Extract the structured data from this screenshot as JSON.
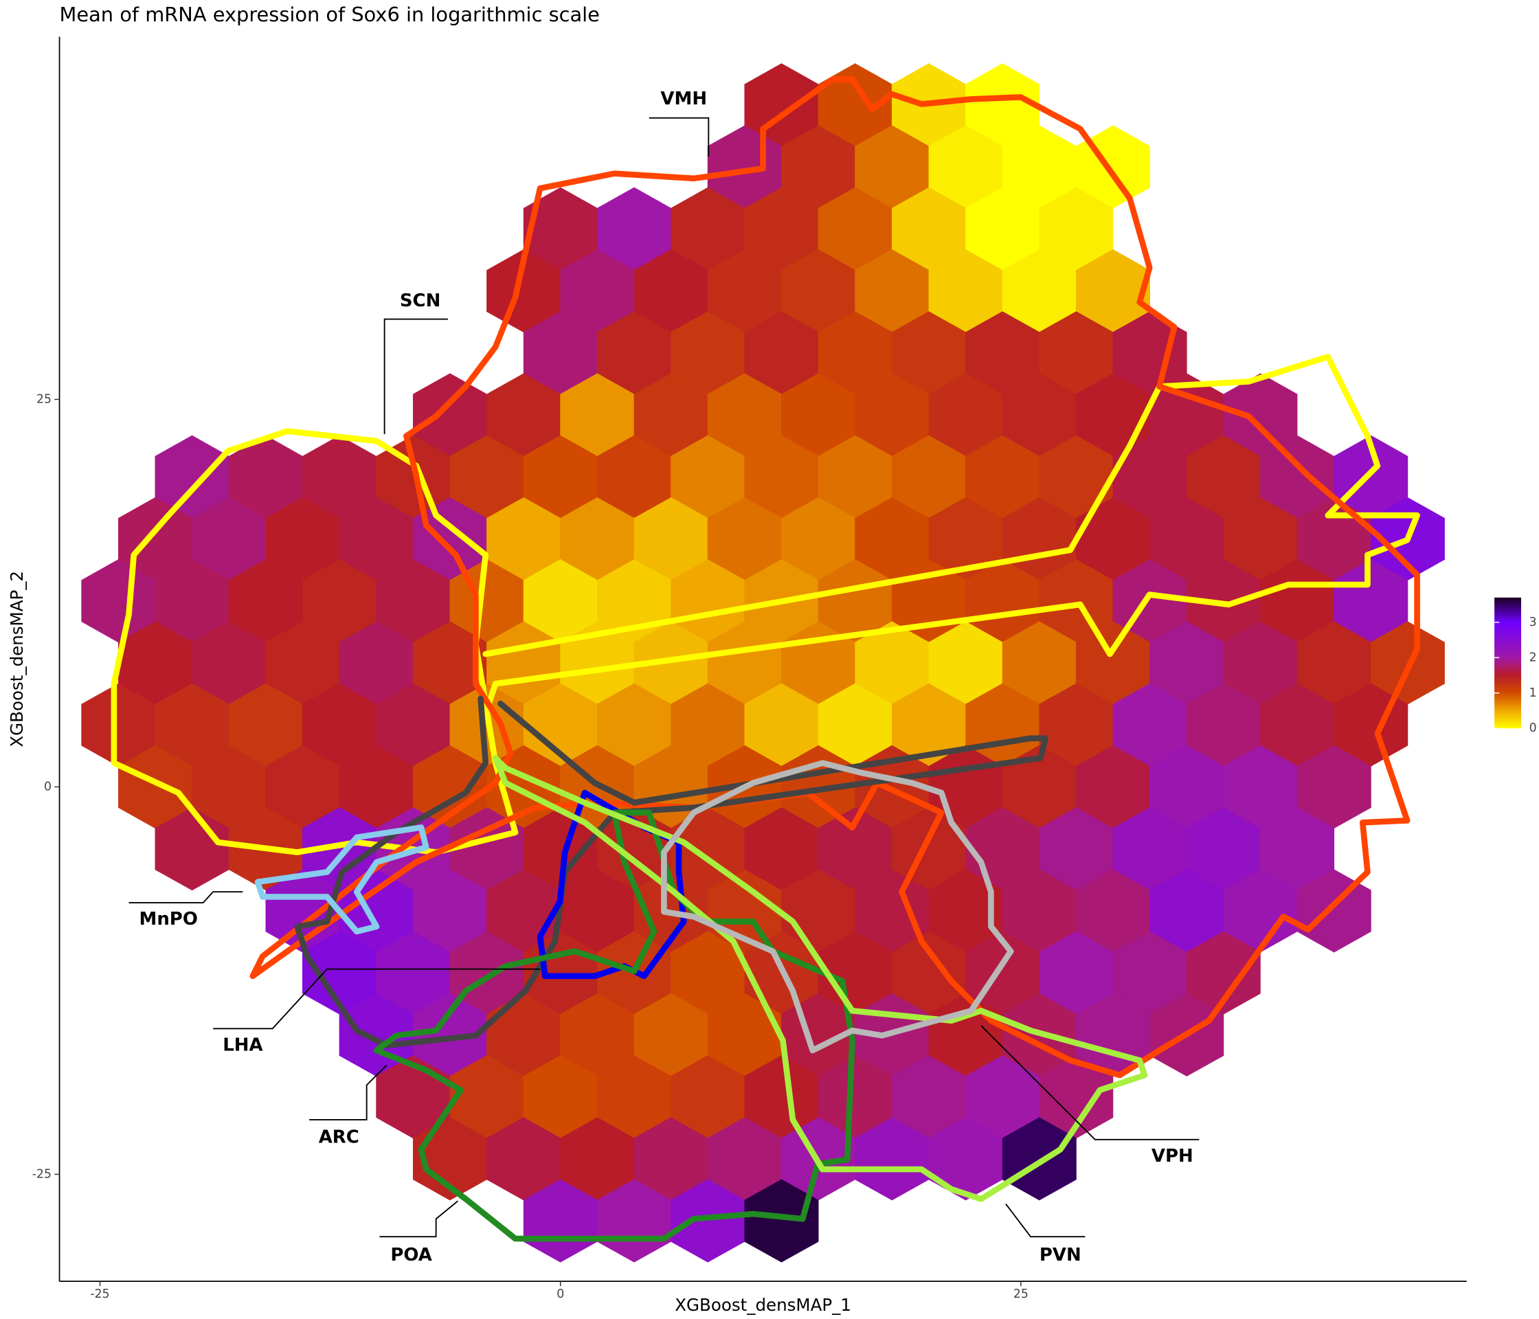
{
  "chart_data": {
    "type": "hexbin",
    "title": "Mean of mRNA expression of Sox6 in logarithmic scale",
    "x_label": "XGBoost_densMAP_1",
    "y_label": "XGBoost_densMAP_2",
    "xlim": [
      -27.2,
      49.2
    ],
    "ylim": [
      -31.9,
      48.4
    ],
    "xticks": [
      -25,
      0,
      25
    ],
    "yticks": [
      -25,
      0,
      25
    ],
    "rows": [
      {
        "y": 44,
        "x": [
          12,
          16,
          20,
          24
        ],
        "values": [
          1.5,
          1.0,
          0.2,
          0.0
        ]
      },
      {
        "y": 40,
        "x": [
          10,
          14,
          18,
          22,
          26,
          30
        ],
        "values": [
          1.8,
          1.3,
          0.8,
          0.1,
          0.0,
          0.0
        ]
      },
      {
        "y": 36,
        "x": [
          0,
          4,
          8,
          12,
          16,
          20,
          24,
          28
        ],
        "values": [
          1.6,
          2.0,
          1.4,
          1.3,
          0.9,
          0.3,
          0.0,
          0.1
        ]
      },
      {
        "y": 32,
        "x": [
          -2,
          2,
          6,
          10,
          14,
          18,
          22,
          26,
          30
        ],
        "values": [
          1.5,
          1.8,
          1.5,
          1.3,
          1.2,
          0.8,
          0.3,
          0.1,
          0.4
        ]
      },
      {
        "y": 28,
        "x": [
          0,
          4,
          8,
          12,
          16,
          20,
          24,
          28,
          32
        ],
        "values": [
          1.8,
          1.4,
          1.2,
          1.4,
          1.1,
          1.2,
          1.4,
          1.3,
          1.6
        ]
      },
      {
        "y": 24,
        "x": [
          -6,
          -2,
          2,
          6,
          10,
          14,
          18,
          22,
          26,
          30,
          34,
          38
        ],
        "values": [
          1.6,
          1.4,
          0.6,
          1.2,
          0.9,
          1.0,
          1.1,
          1.3,
          1.4,
          1.5,
          1.6,
          1.8
        ]
      },
      {
        "y": 20,
        "x": [
          -20,
          -16,
          -12,
          -8,
          -4,
          0,
          4,
          8,
          12,
          16,
          20,
          24,
          28,
          32,
          36,
          40,
          44
        ],
        "values": [
          1.9,
          1.7,
          1.6,
          1.4,
          1.2,
          1.0,
          1.1,
          0.7,
          0.9,
          0.8,
          0.9,
          1.1,
          1.2,
          1.6,
          1.4,
          1.8,
          2.3
        ]
      },
      {
        "y": 16,
        "x": [
          -22,
          -18,
          -14,
          -10,
          -6,
          -2,
          2,
          6,
          10,
          14,
          18,
          22,
          26,
          30,
          34,
          38,
          42,
          46
        ],
        "values": [
          1.7,
          1.8,
          1.5,
          1.6,
          1.9,
          0.5,
          0.6,
          0.4,
          0.8,
          0.7,
          1.0,
          1.2,
          1.3,
          1.5,
          1.6,
          1.4,
          1.7,
          2.6
        ]
      },
      {
        "y": 12,
        "x": [
          -24,
          -20,
          -16,
          -12,
          -8,
          -4,
          0,
          4,
          8,
          12,
          16,
          20,
          24,
          28,
          32,
          36,
          40,
          44
        ],
        "values": [
          1.8,
          1.7,
          1.5,
          1.4,
          1.6,
          0.9,
          0.2,
          0.3,
          0.5,
          0.6,
          0.8,
          1.0,
          1.1,
          1.2,
          1.8,
          1.6,
          1.5,
          2.2
        ]
      },
      {
        "y": 8,
        "x": [
          -22,
          -18,
          -14,
          -10,
          -6,
          -2,
          2,
          6,
          10,
          14,
          18,
          22,
          26,
          30,
          34,
          38,
          42,
          46
        ],
        "values": [
          1.5,
          1.6,
          1.4,
          1.7,
          1.3,
          0.6,
          0.3,
          0.4,
          0.6,
          0.7,
          0.3,
          0.2,
          0.8,
          1.2,
          1.9,
          1.7,
          1.4,
          1.2
        ]
      },
      {
        "y": 4,
        "x": [
          -24,
          -20,
          -16,
          -12,
          -8,
          -4,
          0,
          4,
          8,
          12,
          16,
          20,
          24,
          28,
          32,
          36,
          40,
          44
        ],
        "values": [
          1.4,
          1.3,
          1.2,
          1.5,
          1.6,
          0.7,
          0.5,
          0.6,
          0.8,
          0.4,
          0.2,
          0.5,
          0.9,
          1.3,
          2.0,
          1.8,
          1.6,
          1.5
        ]
      },
      {
        "y": 0,
        "x": [
          -22,
          -18,
          -14,
          -10,
          -6,
          -2,
          2,
          6,
          10,
          14,
          18,
          22,
          26,
          30,
          34,
          38,
          42
        ],
        "values": [
          1.2,
          1.3,
          1.4,
          1.5,
          1.1,
          1.0,
          0.9,
          0.8,
          1.0,
          1.1,
          1.3,
          1.5,
          1.4,
          1.6,
          2.1,
          2.0,
          1.8
        ]
      },
      {
        "y": -4,
        "x": [
          -20,
          -16,
          -12,
          -8,
          -4,
          0,
          4,
          8,
          12,
          16,
          20,
          24,
          28,
          32,
          36,
          40
        ],
        "values": [
          1.6,
          1.3,
          2.4,
          2.0,
          1.8,
          1.5,
          1.4,
          1.3,
          1.5,
          1.6,
          1.4,
          1.7,
          1.9,
          2.2,
          2.3,
          2.0
        ]
      },
      {
        "y": -8,
        "x": [
          -14,
          -10,
          -6,
          -2,
          2,
          6,
          10,
          14,
          18,
          22,
          26,
          30,
          34,
          38,
          42
        ],
        "values": [
          2.3,
          2.5,
          2.0,
          1.6,
          1.5,
          1.3,
          1.2,
          1.4,
          1.6,
          1.5,
          1.7,
          1.8,
          2.4,
          2.1,
          1.9
        ]
      },
      {
        "y": -12,
        "x": [
          -12,
          -8,
          -4,
          0,
          4,
          8,
          12,
          16,
          20,
          24,
          28,
          32,
          36
        ],
        "values": [
          2.6,
          2.3,
          1.8,
          1.4,
          1.2,
          1.0,
          1.3,
          1.5,
          1.4,
          1.6,
          2.0,
          1.9,
          1.7
        ]
      },
      {
        "y": -16,
        "x": [
          -10,
          -6,
          -2,
          2,
          6,
          10,
          14,
          18,
          22,
          26,
          30,
          34
        ],
        "values": [
          2.5,
          2.1,
          1.3,
          1.1,
          0.9,
          1.0,
          1.6,
          1.8,
          1.5,
          1.7,
          1.9,
          1.8
        ]
      },
      {
        "y": -20,
        "x": [
          -8,
          -4,
          0,
          4,
          8,
          12,
          16,
          20,
          24,
          28
        ],
        "values": [
          1.6,
          1.2,
          1.0,
          1.1,
          1.2,
          1.5,
          1.7,
          1.9,
          2.0,
          1.8
        ]
      },
      {
        "y": -24,
        "x": [
          -6,
          -2,
          2,
          6,
          10,
          14,
          18,
          22,
          26
        ],
        "values": [
          1.4,
          1.6,
          1.5,
          1.7,
          1.8,
          2.0,
          2.2,
          2.1,
          3.5
        ]
      },
      {
        "y": -28,
        "x": [
          0,
          4,
          8,
          12
        ],
        "values": [
          2.2,
          2.0,
          2.4,
          3.6
        ]
      }
    ],
    "colorbar": {
      "lim": [
        0,
        3.7
      ],
      "ticks": [
        0,
        1,
        2,
        3
      ],
      "stops": [
        {
          "value": 0,
          "color": "#ffff00"
        },
        {
          "value": 0.5,
          "color": "#f0a800"
        },
        {
          "value": 1,
          "color": "#d24a00"
        },
        {
          "value": 1.5,
          "color": "#b81c28"
        },
        {
          "value": 2,
          "color": "#a018a8"
        },
        {
          "value": 3,
          "color": "#7000ff"
        },
        {
          "value": 3.7,
          "color": "#1a0020"
        }
      ]
    },
    "regions": [
      "VMH",
      "SCN",
      "MnPO",
      "LHA",
      "ARC",
      "POA",
      "PVN",
      "VPH"
    ]
  }
}
